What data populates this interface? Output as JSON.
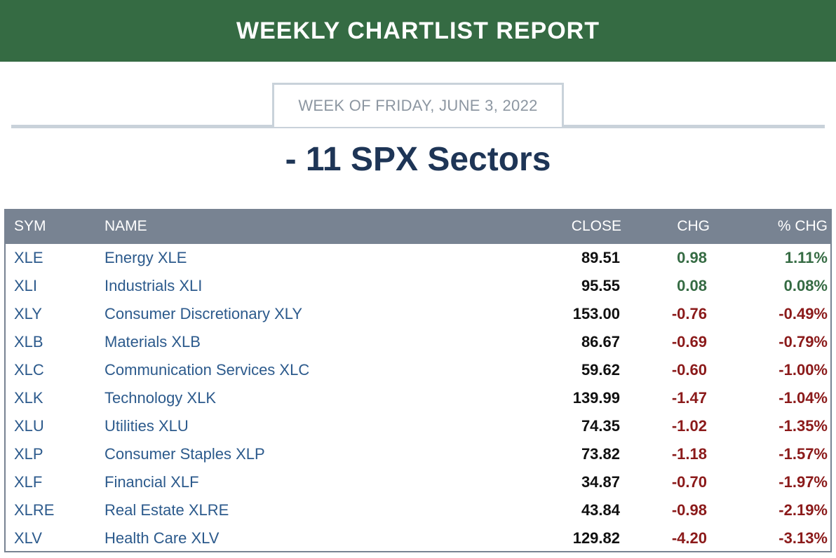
{
  "header": {
    "title": "WEEKLY CHARTLIST REPORT",
    "week_label": "WEEK OF FRIDAY, JUNE 3, 2022",
    "section_title": "- 11 SPX Sectors"
  },
  "table": {
    "columns": {
      "sym": "SYM",
      "name": "NAME",
      "close": "CLOSE",
      "chg": "CHG",
      "pct_chg": "% CHG"
    },
    "rows": [
      {
        "sym": "XLE",
        "name": "Energy XLE",
        "close": "89.51",
        "chg": "0.98",
        "pct": "1.11%",
        "direction": "up"
      },
      {
        "sym": "XLI",
        "name": "Industrials XLI",
        "close": "95.55",
        "chg": "0.08",
        "pct": "0.08%",
        "direction": "up"
      },
      {
        "sym": "XLY",
        "name": "Consumer Discretionary XLY",
        "close": "153.00",
        "chg": "-0.76",
        "pct": "-0.49%",
        "direction": "down"
      },
      {
        "sym": "XLB",
        "name": "Materials XLB",
        "close": "86.67",
        "chg": "-0.69",
        "pct": "-0.79%",
        "direction": "down"
      },
      {
        "sym": "XLC",
        "name": "Communication Services XLC",
        "close": "59.62",
        "chg": "-0.60",
        "pct": "-1.00%",
        "direction": "down"
      },
      {
        "sym": "XLK",
        "name": "Technology XLK",
        "close": "139.99",
        "chg": "-1.47",
        "pct": "-1.04%",
        "direction": "down"
      },
      {
        "sym": "XLU",
        "name": "Utilities XLU",
        "close": "74.35",
        "chg": "-1.02",
        "pct": "-1.35%",
        "direction": "down"
      },
      {
        "sym": "XLP",
        "name": "Consumer Staples XLP",
        "close": "73.82",
        "chg": "-1.18",
        "pct": "-1.57%",
        "direction": "down"
      },
      {
        "sym": "XLF",
        "name": "Financial XLF",
        "close": "34.87",
        "chg": "-0.70",
        "pct": "-1.97%",
        "direction": "down"
      },
      {
        "sym": "XLRE",
        "name": "Real Estate XLRE",
        "close": "43.84",
        "chg": "-0.98",
        "pct": "-2.19%",
        "direction": "down"
      },
      {
        "sym": "XLV",
        "name": "Health Care XLV",
        "close": "129.82",
        "chg": "-4.20",
        "pct": "-3.13%",
        "direction": "down"
      }
    ]
  },
  "colors": {
    "banner": "#356b43",
    "header_row": "#788392",
    "link": "#2c5a8c",
    "positive": "#356b43",
    "negative": "#8b1a1a"
  }
}
